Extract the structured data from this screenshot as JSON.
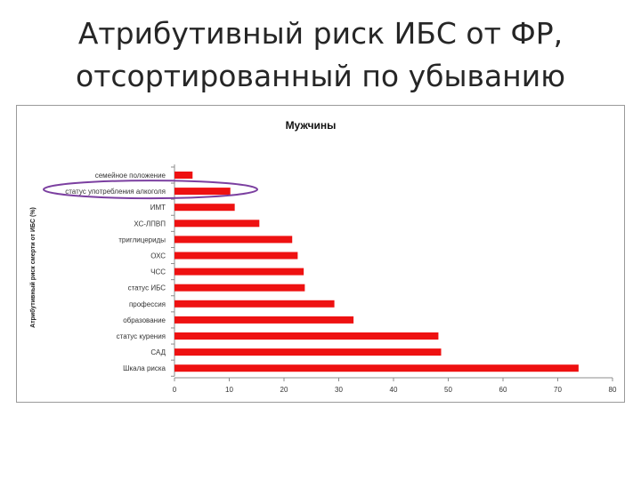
{
  "slide": {
    "title_line1": "Атрибутивный риск ИБС от ФР,",
    "title_line2": "отсортированный по убыванию"
  },
  "chart_data": {
    "type": "bar",
    "orientation": "horizontal",
    "title": "Мужчины",
    "ylabel": "Атрибутивный риск смерти от ИБС (%)",
    "xlabel": "",
    "categories": [
      "семейное положение",
      "статус употребления алкоголя",
      "ИМТ",
      "ХС-ЛПВП",
      "триглицериды",
      "ОХС",
      "ЧСС",
      "статус ИБС",
      "профессия",
      "образование",
      "статус курения",
      "САД",
      "Шкала риска"
    ],
    "values": [
      3.3,
      10.2,
      11.0,
      15.5,
      21.5,
      22.5,
      23.6,
      23.8,
      29.2,
      32.7,
      48.2,
      48.7,
      73.8
    ],
    "xlim": [
      0,
      80
    ],
    "xticks": [
      "0",
      "10",
      "20",
      "30",
      "40",
      "50",
      "60",
      "70",
      "80"
    ],
    "bar_color": "#ee1111",
    "highlight": {
      "category": "статус употребления алкоголя",
      "shape": "ellipse",
      "color": "#7b3fa0"
    },
    "grid": false,
    "legend": "none"
  }
}
